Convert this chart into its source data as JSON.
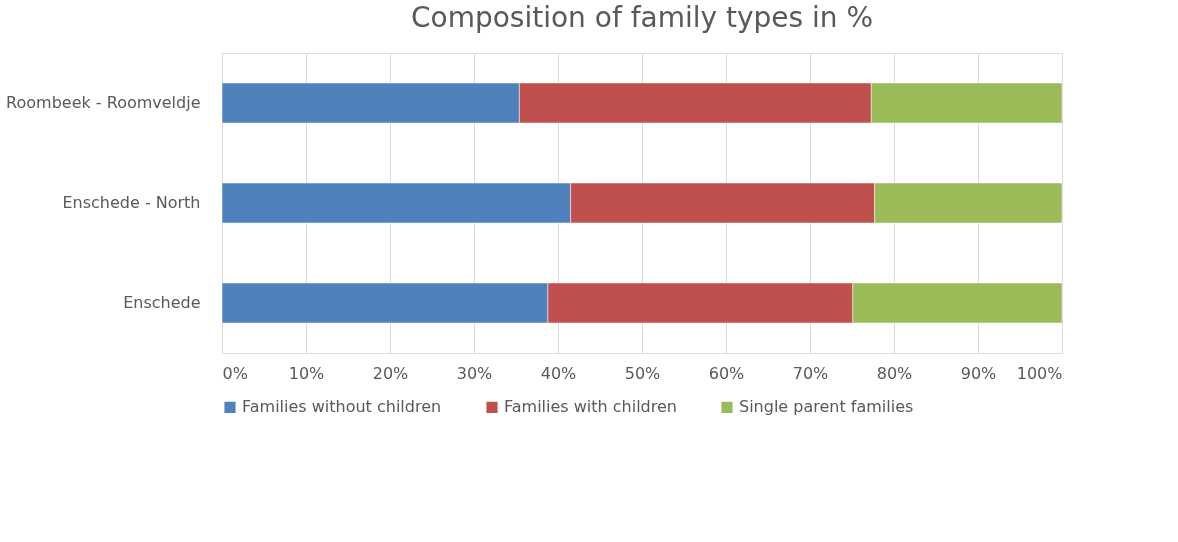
{
  "chart_data": {
    "type": "bar",
    "title": "Composition of family types in %",
    "orientation": "horizontal",
    "stacked": true,
    "categories": [
      "Roombeek - Roomveldje",
      "Enschede - North",
      "Enschede"
    ],
    "series": [
      {
        "name": "Families without children",
        "color": "#4f81bd",
        "values": [
          35.4,
          41.5,
          38.8
        ]
      },
      {
        "name": "Families with children",
        "color": "#c0504d",
        "values": [
          41.9,
          36.2,
          36.3
        ]
      },
      {
        "name": "Single parent families",
        "color": "#9bbb59",
        "values": [
          22.7,
          22.3,
          24.9
        ]
      }
    ],
    "xlim": [
      0,
      100
    ],
    "xticks": [
      {
        "value": 0,
        "label": "0%"
      },
      {
        "value": 10,
        "label": "10%"
      },
      {
        "value": 20,
        "label": "20%"
      },
      {
        "value": 30,
        "label": "30%"
      },
      {
        "value": 40,
        "label": "40%"
      },
      {
        "value": 50,
        "label": "50%"
      },
      {
        "value": 60,
        "label": "60%"
      },
      {
        "value": 70,
        "label": "70%"
      },
      {
        "value": 80,
        "label": "80%"
      },
      {
        "value": 90,
        "label": "90%"
      },
      {
        "value": 100,
        "label": "100%"
      }
    ],
    "grid": "x",
    "legend": "bottom"
  }
}
